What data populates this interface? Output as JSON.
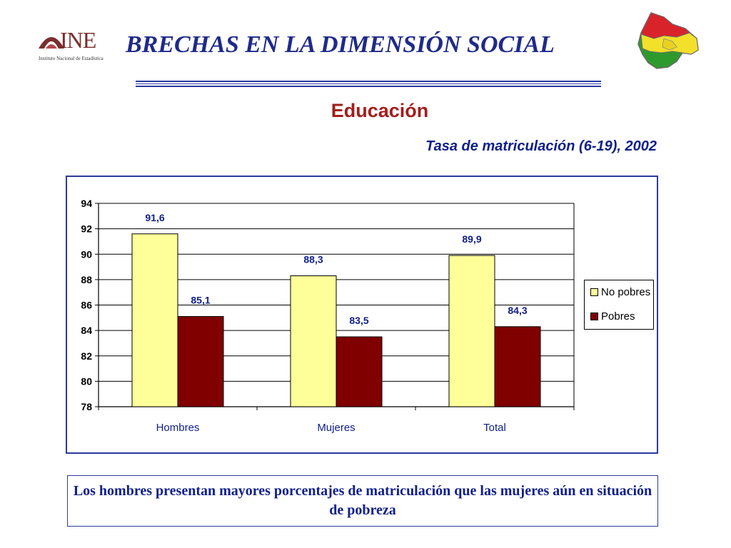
{
  "header": {
    "logo_text": "INE",
    "logo_subtext": "Instituto Nacional de Estadística",
    "title": "BRECHAS EN LA DIMENSIÓN SOCIAL"
  },
  "subtitle": "Educación",
  "chart_data": {
    "type": "bar",
    "title": "Tasa de matriculación (6-19), 2002",
    "categories": [
      "Hombres",
      "Mujeres",
      "Total"
    ],
    "series": [
      {
        "name": "No pobres",
        "values": [
          91.6,
          88.3,
          89.9
        ],
        "labels": [
          "91,6",
          "88,3",
          "89,9"
        ],
        "color": "#FFFF99"
      },
      {
        "name": "Pobres",
        "values": [
          85.1,
          83.5,
          84.3
        ],
        "labels": [
          "85,1",
          "83,5",
          "84,3"
        ],
        "color": "#800000"
      }
    ],
    "ylim": [
      78,
      94
    ],
    "yticks": [
      78,
      80,
      82,
      84,
      86,
      88,
      90,
      92,
      94
    ],
    "grid": true,
    "legend_position": "right"
  },
  "note": "Los hombres presentan mayores porcentajes de matriculación que las mujeres aún en situación de pobreza",
  "colors": {
    "title_blue": "#1f2a8a",
    "subtitle_red": "#a41c1c",
    "frame_blue": "#2b3b9e"
  }
}
